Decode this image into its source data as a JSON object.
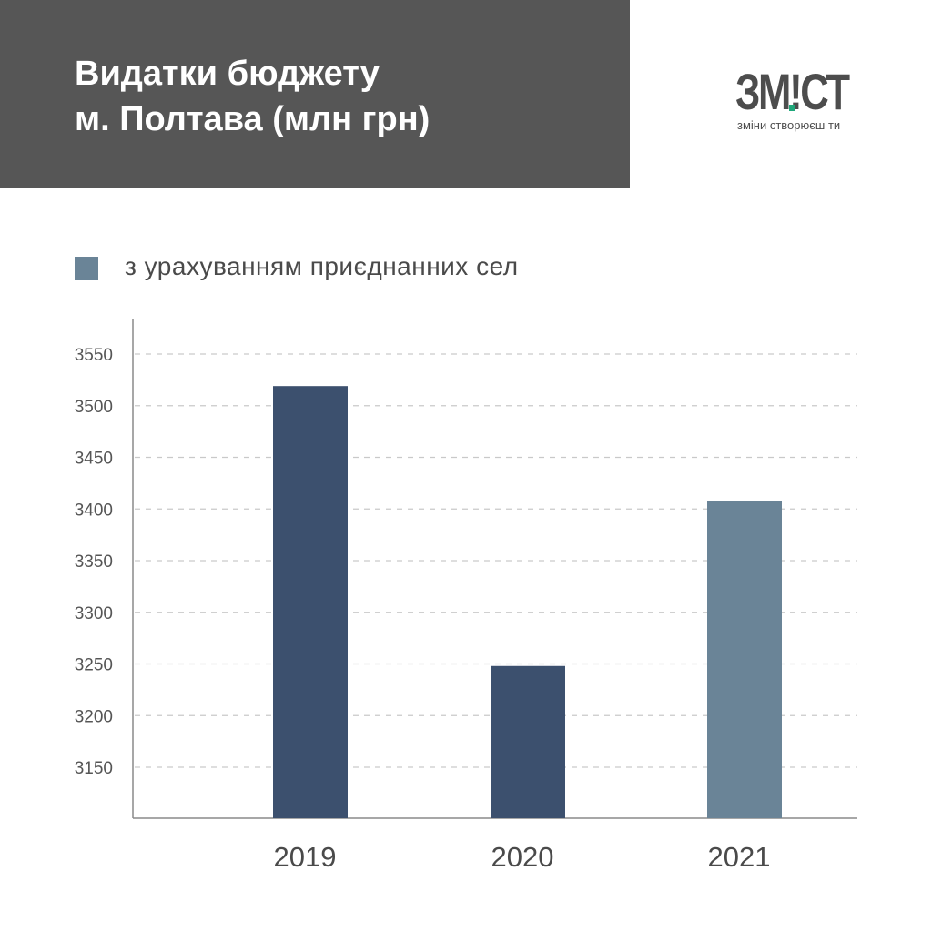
{
  "header": {
    "title_line1": "Видатки бюджету",
    "title_line2": "м. Полтава (млн грн)",
    "background": "#565656"
  },
  "logo": {
    "word": "ЗМ!СТ",
    "tagline": "зміни створюєш ти",
    "accent": "#1fa77a"
  },
  "chart_data": {
    "type": "bar",
    "title": "Видатки бюджету м. Полтава (млн грн)",
    "categories": [
      "2019",
      "2020",
      "2021"
    ],
    "values": [
      3519,
      3248,
      3408
    ],
    "bar_colors": [
      "#3c506e",
      "#3c506e",
      "#6a8497"
    ],
    "legend": {
      "label": "з урахуванням приєднанних сел",
      "color": "#6a8497",
      "placement": "top-left"
    },
    "yticks": [
      3150,
      3200,
      3250,
      3300,
      3350,
      3400,
      3450,
      3500,
      3550
    ],
    "ylim": [
      3100,
      3575
    ],
    "grid": "dashed horizontal",
    "xlabel": "",
    "ylabel": ""
  }
}
